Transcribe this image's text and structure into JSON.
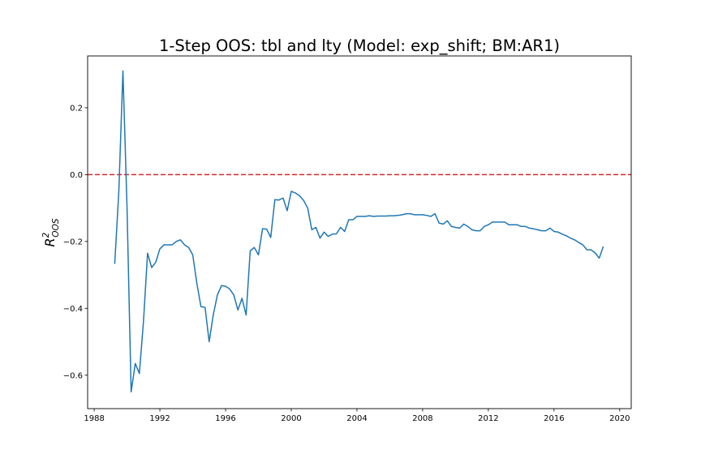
{
  "chart_data": {
    "type": "line",
    "title": "1-Step OOS: tbl and lty (Model: exp_shift; BM:AR1)",
    "ylabel_main": "R",
    "ylabel_sup": "2",
    "ylabel_sub": "OOS",
    "xlabel": "",
    "xlim": [
      1987.6,
      2020.7
    ],
    "ylim": [
      -0.7,
      0.355
    ],
    "xticks": [
      1988,
      1992,
      1996,
      2000,
      2004,
      2008,
      2012,
      2016,
      2020
    ],
    "xtick_labels": [
      "1988",
      "1992",
      "1996",
      "2000",
      "2004",
      "2008",
      "2012",
      "2016",
      "2020"
    ],
    "yticks": [
      -0.6,
      -0.4,
      -0.2,
      0.0,
      0.2
    ],
    "ytick_labels": [
      "−0.6",
      "−0.4",
      "−0.2",
      "0.0",
      "0.2"
    ],
    "grid": false,
    "reference_line": {
      "y": 0.0,
      "color": "#d62728",
      "style": "dashed"
    },
    "series": [
      {
        "color": "#1f77b4",
        "x": [
          1989.25,
          1989.5,
          1989.75,
          1990.0,
          1990.25,
          1990.5,
          1990.75,
          1991.0,
          1991.25,
          1991.5,
          1991.75,
          1992.0,
          1992.25,
          1992.5,
          1992.75,
          1993.0,
          1993.25,
          1993.5,
          1993.75,
          1994.0,
          1994.25,
          1994.5,
          1994.75,
          1995.0,
          1995.25,
          1995.5,
          1995.75,
          1996.0,
          1996.25,
          1996.5,
          1996.75,
          1997.0,
          1997.25,
          1997.5,
          1997.75,
          1998.0,
          1998.25,
          1998.5,
          1998.75,
          1999.0,
          1999.25,
          1999.5,
          1999.75,
          2000.0,
          2000.25,
          2000.5,
          2000.75,
          2001.0,
          2001.25,
          2001.5,
          2001.75,
          2002.0,
          2002.25,
          2002.5,
          2002.75,
          2003.0,
          2003.25,
          2003.5,
          2003.75,
          2004.0,
          2004.25,
          2004.5,
          2004.75,
          2005.0,
          2005.25,
          2005.5,
          2005.75,
          2006.0,
          2006.25,
          2006.5,
          2006.75,
          2007.0,
          2007.25,
          2007.5,
          2007.75,
          2008.0,
          2008.25,
          2008.5,
          2008.75,
          2009.0,
          2009.25,
          2009.5,
          2009.75,
          2010.0,
          2010.25,
          2010.5,
          2010.75,
          2011.0,
          2011.25,
          2011.5,
          2011.75,
          2012.0,
          2012.25,
          2012.5,
          2012.75,
          2013.0,
          2013.25,
          2013.5,
          2013.75,
          2014.0,
          2014.25,
          2014.5,
          2014.75,
          2015.0,
          2015.25,
          2015.5,
          2015.75,
          2016.0,
          2016.25,
          2016.5,
          2016.75,
          2017.0,
          2017.25,
          2017.5,
          2017.75,
          2018.0,
          2018.25,
          2018.5,
          2018.75,
          2019.0
        ],
        "values": [
          -0.267,
          -0.05,
          0.31,
          -0.1,
          -0.65,
          -0.565,
          -0.595,
          -0.44,
          -0.235,
          -0.278,
          -0.262,
          -0.222,
          -0.21,
          -0.21,
          -0.21,
          -0.2,
          -0.195,
          -0.21,
          -0.218,
          -0.24,
          -0.325,
          -0.395,
          -0.397,
          -0.5,
          -0.42,
          -0.36,
          -0.332,
          -0.334,
          -0.342,
          -0.36,
          -0.405,
          -0.37,
          -0.42,
          -0.228,
          -0.218,
          -0.24,
          -0.162,
          -0.163,
          -0.188,
          -0.075,
          -0.076,
          -0.07,
          -0.108,
          -0.05,
          -0.055,
          -0.063,
          -0.077,
          -0.1,
          -0.165,
          -0.158,
          -0.19,
          -0.172,
          -0.185,
          -0.178,
          -0.177,
          -0.158,
          -0.17,
          -0.135,
          -0.135,
          -0.125,
          -0.125,
          -0.125,
          -0.123,
          -0.125,
          -0.124,
          -0.124,
          -0.124,
          -0.123,
          -0.123,
          -0.122,
          -0.12,
          -0.117,
          -0.117,
          -0.12,
          -0.12,
          -0.12,
          -0.122,
          -0.125,
          -0.117,
          -0.145,
          -0.148,
          -0.138,
          -0.155,
          -0.158,
          -0.16,
          -0.148,
          -0.155,
          -0.165,
          -0.168,
          -0.168,
          -0.155,
          -0.15,
          -0.142,
          -0.142,
          -0.142,
          -0.142,
          -0.15,
          -0.15,
          -0.15,
          -0.155,
          -0.155,
          -0.16,
          -0.162,
          -0.165,
          -0.168,
          -0.168,
          -0.16,
          -0.17,
          -0.172,
          -0.178,
          -0.183,
          -0.19,
          -0.195,
          -0.203,
          -0.21,
          -0.225,
          -0.225,
          -0.234,
          -0.25,
          -0.215
        ]
      }
    ]
  }
}
